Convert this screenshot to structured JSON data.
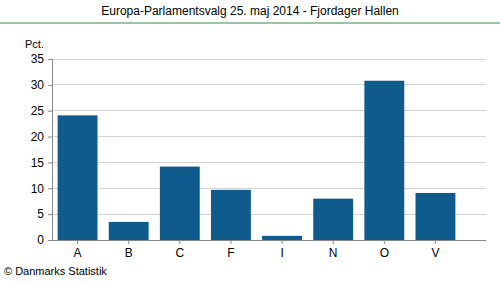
{
  "chart_data": {
    "type": "bar",
    "title": "Europa-Parlamentsvalg 25. maj 2014 - Fjordager Hallen",
    "ylabel": "Pct.",
    "annotations": [
      "© Danmarks Statistik"
    ],
    "categories": [
      "A",
      "B",
      "C",
      "F",
      "I",
      "N",
      "O",
      "V"
    ],
    "values": [
      24.1,
      3.5,
      14.2,
      9.7,
      0.8,
      8.0,
      30.8,
      9.1
    ],
    "color": "#0f5b8c",
    "ylim": [
      0,
      35
    ],
    "yticks": [
      0,
      5,
      10,
      15,
      20,
      25,
      30,
      35
    ],
    "grid": true
  }
}
